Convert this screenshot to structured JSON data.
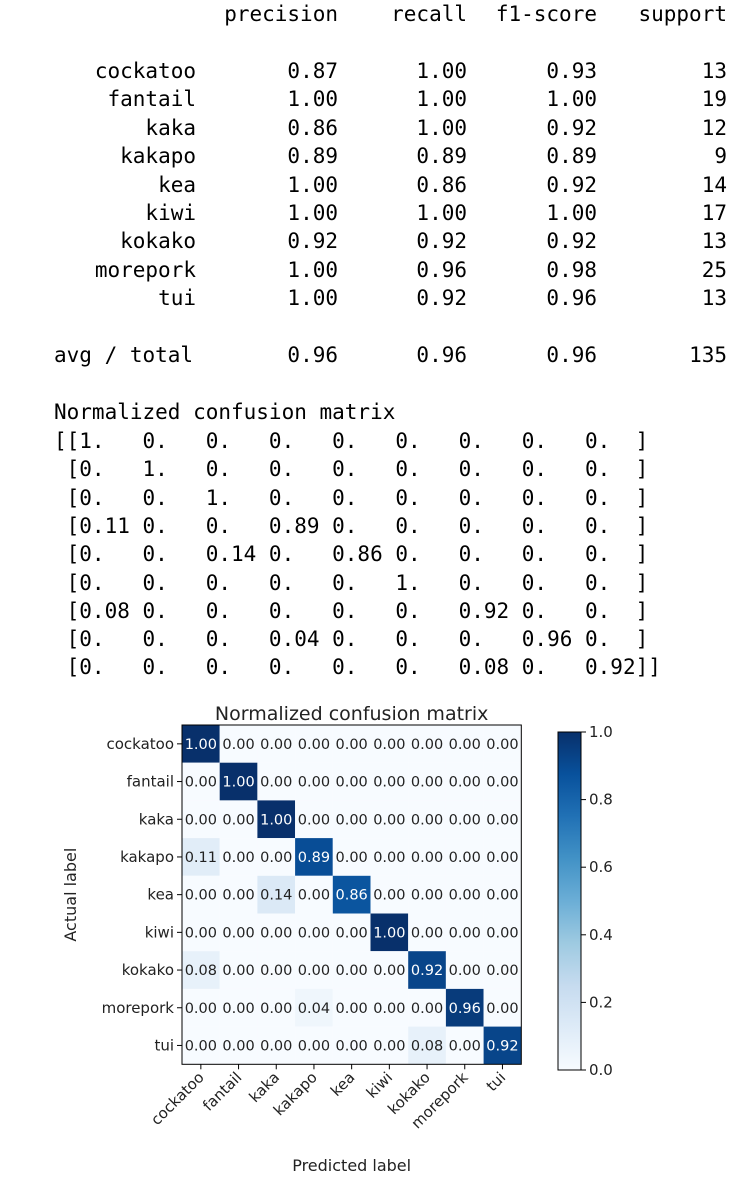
{
  "report": {
    "headers": [
      "precision",
      "recall",
      "f1-score",
      "support"
    ],
    "rows": [
      {
        "label": "cockatoo",
        "precision": "0.87",
        "recall": "1.00",
        "f1": "0.93",
        "support": "13"
      },
      {
        "label": "fantail",
        "precision": "1.00",
        "recall": "1.00",
        "f1": "1.00",
        "support": "19"
      },
      {
        "label": "kaka",
        "precision": "0.86",
        "recall": "1.00",
        "f1": "0.92",
        "support": "12"
      },
      {
        "label": "kakapo",
        "precision": "0.89",
        "recall": "0.89",
        "f1": "0.89",
        "support": "9"
      },
      {
        "label": "kea",
        "precision": "1.00",
        "recall": "0.86",
        "f1": "0.92",
        "support": "14"
      },
      {
        "label": "kiwi",
        "precision": "1.00",
        "recall": "1.00",
        "f1": "1.00",
        "support": "17"
      },
      {
        "label": "kokako",
        "precision": "0.92",
        "recall": "0.92",
        "f1": "0.92",
        "support": "13"
      },
      {
        "label": "morepork",
        "precision": "1.00",
        "recall": "0.96",
        "f1": "0.98",
        "support": "25"
      },
      {
        "label": "tui",
        "precision": "1.00",
        "recall": "0.92",
        "f1": "0.96",
        "support": "13"
      }
    ],
    "total": {
      "label": "avg / total",
      "precision": "0.96",
      "recall": "0.96",
      "f1": "0.96",
      "support": "135"
    }
  },
  "matrix_text": {
    "title": "Normalized confusion matrix",
    "lines": [
      "[[1.   0.   0.   0.   0.   0.   0.   0.   0.  ]",
      " [0.   1.   0.   0.   0.   0.   0.   0.   0.  ]",
      " [0.   0.   1.   0.   0.   0.   0.   0.   0.  ]",
      " [0.11 0.   0.   0.89 0.   0.   0.   0.   0.  ]",
      " [0.   0.   0.14 0.   0.86 0.   0.   0.   0.  ]",
      " [0.   0.   0.   0.   0.   1.   0.   0.   0.  ]",
      " [0.08 0.   0.   0.   0.   0.   0.92 0.   0.  ]",
      " [0.   0.   0.   0.04 0.   0.   0.   0.96 0.  ]",
      " [0.   0.   0.   0.   0.   0.   0.08 0.   0.92]]"
    ]
  },
  "chart_data": {
    "type": "heatmap",
    "title": "Normalized confusion matrix",
    "xlabel": "Predicted label",
    "ylabel": "Actual label",
    "labels": [
      "cockatoo",
      "fantail",
      "kaka",
      "kakapo",
      "kea",
      "kiwi",
      "kokako",
      "morepork",
      "tui"
    ],
    "values": [
      [
        1.0,
        0.0,
        0.0,
        0.0,
        0.0,
        0.0,
        0.0,
        0.0,
        0.0
      ],
      [
        0.0,
        1.0,
        0.0,
        0.0,
        0.0,
        0.0,
        0.0,
        0.0,
        0.0
      ],
      [
        0.0,
        0.0,
        1.0,
        0.0,
        0.0,
        0.0,
        0.0,
        0.0,
        0.0
      ],
      [
        0.11,
        0.0,
        0.0,
        0.89,
        0.0,
        0.0,
        0.0,
        0.0,
        0.0
      ],
      [
        0.0,
        0.0,
        0.14,
        0.0,
        0.86,
        0.0,
        0.0,
        0.0,
        0.0
      ],
      [
        0.0,
        0.0,
        0.0,
        0.0,
        0.0,
        1.0,
        0.0,
        0.0,
        0.0
      ],
      [
        0.08,
        0.0,
        0.0,
        0.0,
        0.0,
        0.0,
        0.92,
        0.0,
        0.0
      ],
      [
        0.0,
        0.0,
        0.0,
        0.04,
        0.0,
        0.0,
        0.0,
        0.96,
        0.0
      ],
      [
        0.0,
        0.0,
        0.0,
        0.0,
        0.0,
        0.0,
        0.08,
        0.0,
        0.92
      ]
    ],
    "colormap": "Blues",
    "colorbar": {
      "range": [
        0.0,
        1.0
      ],
      "ticks": [
        "0.0",
        "0.2",
        "0.4",
        "0.6",
        "0.8",
        "1.0"
      ]
    },
    "colors": {
      "low": "#f7fbff",
      "high": "#08306b"
    }
  }
}
